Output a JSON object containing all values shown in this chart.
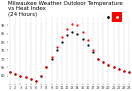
{
  "title": "Milwaukee Weather Outdoor Temperature\nvs Heat Index\n(24 Hours)",
  "title_fontsize": 4.0,
  "bg_color": "#ffffff",
  "grid_color": "#aaaaaa",
  "hours": [
    1,
    2,
    3,
    4,
    5,
    6,
    7,
    8,
    9,
    10,
    11,
    12,
    13,
    14,
    15,
    16,
    17,
    18,
    19,
    20,
    21,
    22,
    23,
    24
  ],
  "temp": [
    62,
    61,
    60,
    59,
    58,
    57,
    60,
    65,
    70,
    75,
    80,
    84,
    86,
    85,
    82,
    78,
    74,
    70,
    68,
    66,
    65,
    64,
    63,
    62
  ],
  "heat_index": [
    62,
    61,
    60,
    59,
    58,
    57,
    60,
    65,
    71,
    77,
    83,
    88,
    91,
    90,
    86,
    81,
    75,
    70,
    68,
    66,
    65,
    64,
    63,
    62
  ],
  "temp_color": "#000000",
  "hi_color": "#ff0000",
  "ylim": [
    55,
    95
  ],
  "xlabel_fontsize": 2.5,
  "ylabel_fontsize": 2.5,
  "tick_labels": [
    "1",
    "2",
    "3",
    "4",
    "5",
    "6",
    "7",
    "8",
    "9",
    "10",
    "11",
    "12",
    "13",
    "14",
    "15",
    "16",
    "17",
    "18",
    "19",
    "20",
    "21",
    "22",
    "23",
    "24"
  ],
  "ytick_labels": [
    "60",
    "65",
    "70",
    "75",
    "80",
    "85",
    "90"
  ],
  "ytick_vals": [
    60,
    65,
    70,
    75,
    80,
    85,
    90
  ],
  "legend_orange": "#ff9900",
  "legend_red": "#ff0000",
  "legend_dark": "#cc0000"
}
